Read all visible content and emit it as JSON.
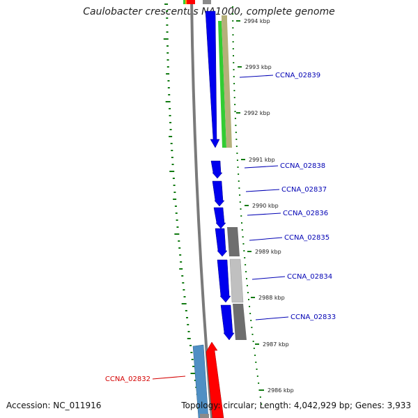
{
  "title": "Caulobacter crescentus NA1000, complete genome",
  "accession": "Accession: NC_011916",
  "summary": "Topology: circular; Length: 4,042,929 bp; Genes: 3,933",
  "scale_ticks": [
    {
      "label": "2994 kbp"
    },
    {
      "label": "2993 kbp"
    },
    {
      "label": "2992 kbp"
    },
    {
      "label": "2991 kbp"
    },
    {
      "label": "2990 kbp"
    },
    {
      "label": "2989 kbp"
    },
    {
      "label": "2988 kbp"
    },
    {
      "label": "2987 kbp"
    },
    {
      "label": "2986 kbp"
    }
  ],
  "gene_labels": [
    {
      "name": "CCNA_02839",
      "color": "#0000b4"
    },
    {
      "name": "CCNA_02838",
      "color": "#0000b4"
    },
    {
      "name": "CCNA_02837",
      "color": "#0000b4"
    },
    {
      "name": "CCNA_02836",
      "color": "#0000b4"
    },
    {
      "name": "CCNA_02835",
      "color": "#0000b4"
    },
    {
      "name": "CCNA_02834",
      "color": "#0000b4"
    },
    {
      "name": "CCNA_02833",
      "color": "#0000b4"
    },
    {
      "name": "CCNA_02832",
      "color": "#d40000"
    }
  ],
  "colors": {
    "backbone": "#7a7a7a",
    "gene_blue": "#0000ee",
    "gene_red": "#ff0000",
    "gene_steelblue": "#4f8fc4",
    "gene_green": "#33cc33",
    "gene_olive": "#b5b07a",
    "gene_gray_dark": "#6e6e6e",
    "gene_gray_light": "#c0c0c0",
    "gc_dash": "#117a11"
  }
}
